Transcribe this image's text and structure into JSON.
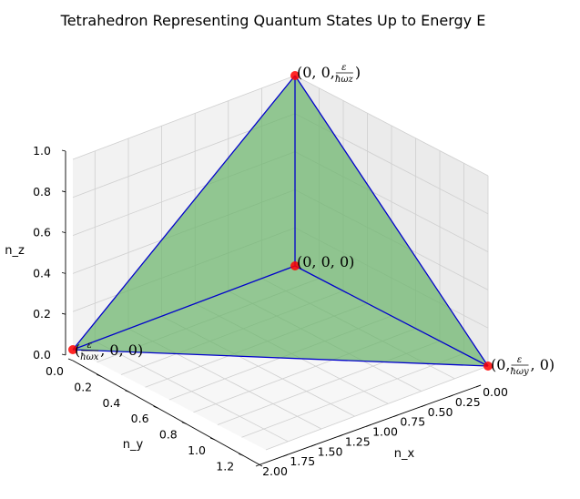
{
  "chart_data": {
    "type": "3d-tetrahedron",
    "title": "Tetrahedron Representing Quantum States Up to Energy E",
    "xlabel": "n_x",
    "ylabel": "n_y",
    "zlabel": "n_z",
    "xlim": [
      0,
      2.0
    ],
    "ylim": [
      0,
      1.333
    ],
    "zlim": [
      0,
      1.0
    ],
    "x_ticks": [
      "0.00",
      "0.25",
      "0.50",
      "0.75",
      "1.00",
      "1.25",
      "1.50",
      "1.75",
      "2.00"
    ],
    "y_ticks": [
      "0.0",
      "0.2",
      "0.4",
      "0.6",
      "0.8",
      "1.0",
      "1.2"
    ],
    "z_ticks": [
      "0.0",
      "0.2",
      "0.4",
      "0.6",
      "0.8",
      "1.0"
    ],
    "grid": true,
    "face_color": "#6ab56a",
    "edge_color": "#0000cc",
    "vertex_color": "#ff0000",
    "vertices": [
      {
        "name": "origin",
        "x": 0,
        "y": 0,
        "z": 0,
        "label": "(0, 0, 0)"
      },
      {
        "name": "x-intercept",
        "x": 2.0,
        "y": 0,
        "z": 0,
        "label": "(ε/ħω_x, 0, 0)"
      },
      {
        "name": "y-intercept",
        "x": 0,
        "y": 1.333,
        "z": 0,
        "label": "(0, ε/ħω_y, 0)"
      },
      {
        "name": "z-intercept",
        "x": 0,
        "y": 0,
        "z": 1.0,
        "label": "(0, 0, ε/ħω_z)"
      }
    ]
  }
}
